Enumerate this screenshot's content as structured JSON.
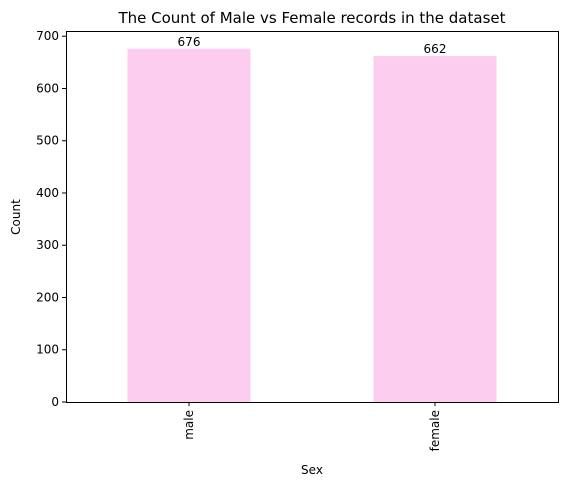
{
  "chart_data": {
    "type": "bar",
    "title": "The Count of Male vs Female records in the dataset",
    "xlabel": "Sex",
    "ylabel": "Count",
    "categories": [
      "male",
      "female"
    ],
    "values": [
      676,
      662
    ],
    "data_labels": [
      "676",
      "662"
    ],
    "ylim": [
      0,
      710
    ],
    "yticks": [
      0,
      100,
      200,
      300,
      400,
      500,
      600,
      700
    ],
    "ytick_labels": [
      "0",
      "100",
      "200",
      "300",
      "400",
      "500",
      "600",
      "700"
    ],
    "bar_color": "#fccdee",
    "grid": false,
    "legend": "none",
    "x_tick_rotation": "vertical"
  }
}
